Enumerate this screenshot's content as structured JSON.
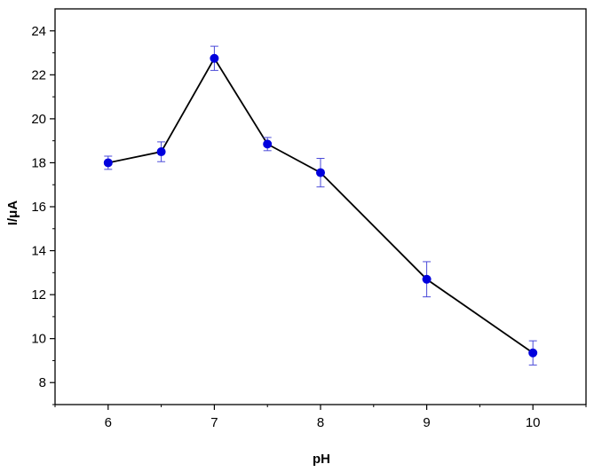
{
  "chart_data": {
    "type": "line",
    "title": "",
    "xlabel": "pH",
    "ylabel": "I/μA",
    "xlim": [
      5.5,
      10.5
    ],
    "ylim": [
      7,
      25
    ],
    "x_ticks": [
      6,
      7,
      8,
      9,
      10
    ],
    "y_ticks": [
      8,
      10,
      12,
      14,
      16,
      18,
      20,
      22,
      24
    ],
    "grid": false,
    "legend": "none",
    "series": [
      {
        "x": [
          6,
          6.5,
          7,
          7.5,
          8,
          9,
          10
        ],
        "y": [
          18.0,
          18.5,
          22.75,
          18.85,
          17.55,
          12.7,
          9.35
        ],
        "y_err": [
          0.3,
          0.45,
          0.55,
          0.3,
          0.65,
          0.8,
          0.55
        ]
      }
    ],
    "colors": {
      "line": "#000000",
      "marker": "#0000dd",
      "error_bar": "#4a4ad8"
    }
  }
}
